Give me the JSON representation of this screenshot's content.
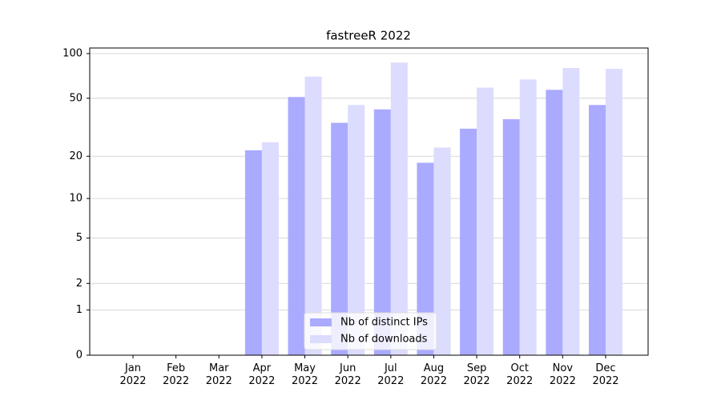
{
  "chart_data": {
    "type": "bar",
    "title": "fastreeR 2022",
    "categories": [
      "Jan\n2022",
      "Feb\n2022",
      "Mar\n2022",
      "Apr\n2022",
      "May\n2022",
      "Jun\n2022",
      "Jul\n2022",
      "Aug\n2022",
      "Sep\n2022",
      "Oct\n2022",
      "Nov\n2022",
      "Dec\n2022"
    ],
    "series": [
      {
        "name": "Nb of distinct IPs",
        "color": "#aaaaff",
        "values": [
          0,
          0,
          0,
          22,
          51,
          34,
          42,
          18,
          31,
          36,
          57,
          45
        ]
      },
      {
        "name": "Nb of downloads",
        "color": "#dcdcff",
        "values": [
          0,
          0,
          0,
          25,
          70,
          45,
          87,
          23,
          59,
          67,
          80,
          79
        ]
      }
    ],
    "yscale": "log1p",
    "ylim": [
      0,
      109
    ],
    "yticks": [
      0,
      1,
      2,
      5,
      10,
      20,
      50,
      100
    ],
    "grid": true,
    "legend": "lower center"
  }
}
